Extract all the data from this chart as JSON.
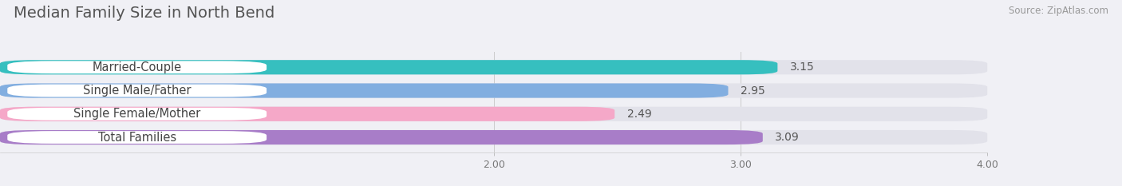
{
  "title": "Median Family Size in North Bend",
  "source": "Source: ZipAtlas.com",
  "categories": [
    "Married-Couple",
    "Single Male/Father",
    "Single Female/Mother",
    "Total Families"
  ],
  "values": [
    3.15,
    2.95,
    2.49,
    3.09
  ],
  "bar_colors": [
    "#36bfbf",
    "#82aee0",
    "#f5a8c8",
    "#a87dc8"
  ],
  "xlim": [
    0.0,
    4.0
  ],
  "xaxis_min": 2.0,
  "xaxis_max": 4.0,
  "xticks": [
    2.0,
    3.0,
    4.0
  ],
  "xtick_labels": [
    "2.00",
    "3.00",
    "4.00"
  ],
  "bar_height": 0.62,
  "background_color": "#f0f0f5",
  "bar_bg_color": "#e2e2ea",
  "title_fontsize": 14,
  "label_fontsize": 10.5,
  "value_fontsize": 10
}
